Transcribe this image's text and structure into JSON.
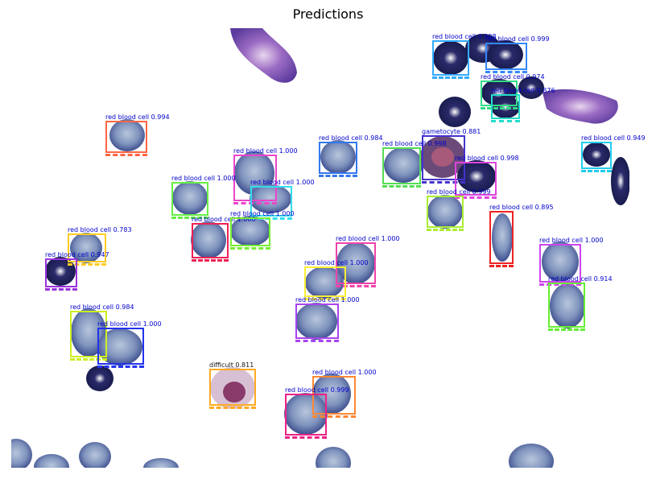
{
  "title": "Predictions",
  "detections": [
    {
      "label": "red blood cell 0.998",
      "color": "#33aaff"
    },
    {
      "label": "red blood cell 0.999",
      "color": "#3388ff"
    },
    {
      "label": "red blood cell 0.974",
      "color": "#33dd88"
    },
    {
      "label": "red blood cell 0.876",
      "color": "#22ddcc"
    },
    {
      "label": "red blood cell 0.994",
      "color": "#ff6644"
    },
    {
      "label": "red blood cell 0.984",
      "color": "#3377ee"
    },
    {
      "label": "gametocyte 0.881",
      "color": "#4433cc"
    },
    {
      "label": "red blood cell 0.998",
      "color": "#55dd55"
    },
    {
      "label": "red blood cell 0.998",
      "color": "#dd44dd"
    },
    {
      "label": "red blood cell 0.949",
      "color": "#22ccee"
    },
    {
      "label": "red blood cell 1.000",
      "color": "#ee44cc"
    },
    {
      "label": "red blood cell 1.000",
      "color": "#66ee44"
    },
    {
      "label": "red blood cell 1.000",
      "color": "#33ddee"
    },
    {
      "label": "red blood cell 0.999",
      "color": "#aaee33"
    },
    {
      "label": "red blood cell 0.895",
      "color": "#ee2222"
    },
    {
      "label": "red blood cell 1.000",
      "color": "#ee2255"
    },
    {
      "label": "red blood cell 1.000",
      "color": "#77ee33"
    },
    {
      "label": "red blood cell 0.783",
      "color": "#ffcc22"
    },
    {
      "label": "red blood cell 0.947",
      "color": "#9933dd"
    },
    {
      "label": "red blood cell 1.000",
      "color": "#ee44aa"
    },
    {
      "label": "red blood cell 1.000",
      "color": "#ffee33"
    },
    {
      "label": "red blood cell 1.000",
      "color": "#aa44ee"
    },
    {
      "label": "red blood cell 1.000",
      "color": "#cc44ee"
    },
    {
      "label": "red blood cell 0.914",
      "color": "#66ee33"
    },
    {
      "label": "red blood cell 0.984",
      "color": "#ccee22"
    },
    {
      "label": "red blood cell 1.000",
      "color": "#2233ee"
    },
    {
      "label": "difficult 0.811",
      "color": "#ffaa22"
    },
    {
      "label": "red blood cell 1.000",
      "color": "#ff8833"
    },
    {
      "label": "red blood cell 0.999",
      "color": "#ee2288"
    }
  ]
}
